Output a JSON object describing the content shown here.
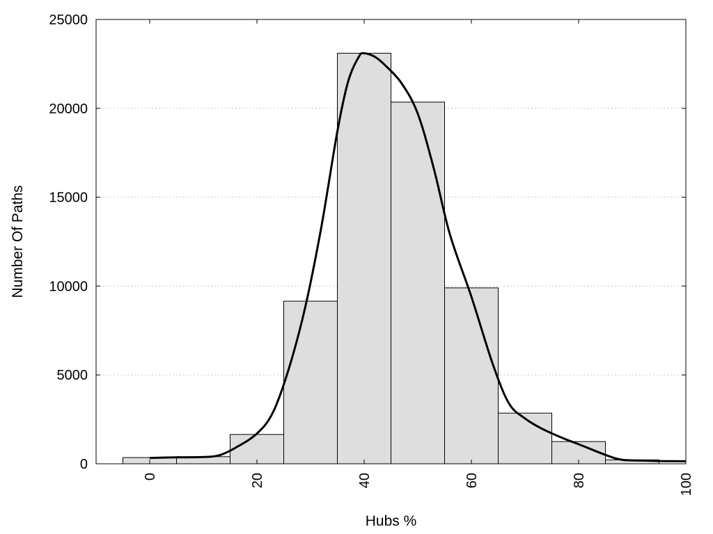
{
  "chart_data": {
    "type": "bar",
    "subtype": "histogram-with-density-curve",
    "title": "",
    "xlabel": "Hubs %",
    "ylabel": "Number Of Paths",
    "xlim": [
      -10,
      100
    ],
    "ylim": [
      0,
      25000
    ],
    "xticks": [
      "0",
      "20",
      "40",
      "60",
      "80",
      "100"
    ],
    "xtick_values": [
      0,
      20,
      40,
      60,
      80,
      100
    ],
    "yticks": [
      "0",
      "5000",
      "10000",
      "15000",
      "20000",
      "25000"
    ],
    "ytick_values": [
      0,
      5000,
      10000,
      15000,
      20000,
      25000
    ],
    "grid": "horizontal dotted",
    "bin_width": 10,
    "bins": [
      {
        "center": 0,
        "value": 350
      },
      {
        "center": 10,
        "value": 400
      },
      {
        "center": 20,
        "value": 1650
      },
      {
        "center": 30,
        "value": 9150
      },
      {
        "center": 40,
        "value": 23100
      },
      {
        "center": 50,
        "value": 20350
      },
      {
        "center": 60,
        "value": 9900
      },
      {
        "center": 70,
        "value": 2850
      },
      {
        "center": 80,
        "value": 1250
      },
      {
        "center": 90,
        "value": 220
      }
    ],
    "curve": {
      "x": [
        0,
        5,
        10,
        13,
        16,
        20,
        23,
        26,
        29,
        32,
        35,
        37,
        39,
        40,
        42,
        44,
        47,
        50,
        53,
        56,
        60,
        64,
        67,
        70,
        73,
        77,
        80,
        85,
        88,
        92,
        96,
        100
      ],
      "y": [
        330,
        360,
        380,
        480,
        900,
        1700,
        2900,
        5400,
        8800,
        13300,
        18700,
        21500,
        22900,
        23100,
        22900,
        22400,
        21400,
        19700,
        16600,
        12900,
        9400,
        5600,
        3400,
        2550,
        2000,
        1450,
        1100,
        500,
        230,
        180,
        150,
        140
      ]
    },
    "colors": {
      "bar_fill": "#dedede",
      "bar_stroke": "#000000",
      "curve": "#000000",
      "grid": "#c8c8c8"
    }
  }
}
